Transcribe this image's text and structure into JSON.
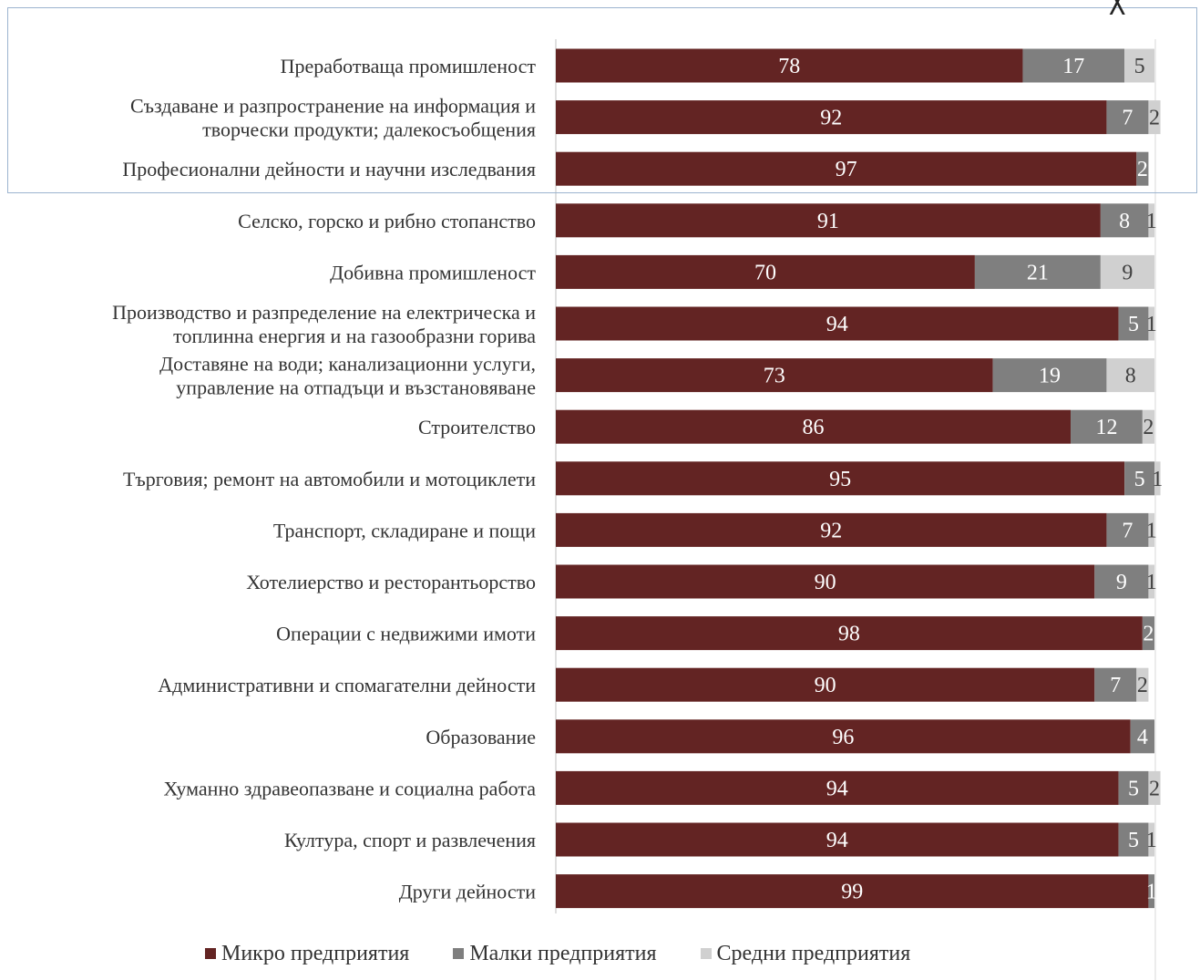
{
  "chart_data": {
    "type": "bar",
    "orientation": "horizontal",
    "stacked": true,
    "categories": [
      "Преработваща промишленост",
      "Създаване и разпространение на информация и творчески продукти; далекосъобщения",
      "Професионални дейности и научни изследвания",
      "Селско, горско и рибно стопанство",
      "Добивна промишленост",
      "Производство и разпределение на електрическа и топлинна енергия и на газообразни горива",
      "Доставяне на води; канализационни услуги, управление на отпадъци и възстановяване",
      "Строителство",
      "Търговия; ремонт на автомобили и мотоциклети",
      "Транспорт, складиране и пощи",
      "Хотелиерство и ресторантьорство",
      "Операции с недвижими имоти",
      "Административни и спомагателни дейности",
      "Образование",
      "Хуманно здравеопазване и социална работа",
      "Култура, спорт и развлечения",
      "Други дейности"
    ],
    "category_lines": [
      [
        "Преработваща промишленост"
      ],
      [
        "Създаване и разпространение на информация и",
        "творчески продукти; далекосъобщения"
      ],
      [
        "Професионални дейности и научни изследвания"
      ],
      [
        "Селско, горско и рибно стопанство"
      ],
      [
        "Добивна промишленост"
      ],
      [
        "Производство и разпределение на електрическа и",
        "топлинна енергия и на газообразни горива"
      ],
      [
        "Доставяне на води; канализационни услуги,",
        "управление на отпадъци и възстановяване"
      ],
      [
        "Строителство"
      ],
      [
        "Търговия; ремонт на автомобили и мотоциклети"
      ],
      [
        "Транспорт, складиране и пощи"
      ],
      [
        "Хотелиерство и ресторантьорство"
      ],
      [
        "Операции с недвижими имоти"
      ],
      [
        "Административни и спомагателни дейности"
      ],
      [
        "Образование"
      ],
      [
        "Хуманно здравеопазване и социална работа"
      ],
      [
        "Култура, спорт и развлечения"
      ],
      [
        "Други дейности"
      ]
    ],
    "series": [
      {
        "name": "Микро предприятия",
        "color": "#632423",
        "label_color": "#ffffff",
        "values": [
          78,
          92,
          97,
          91,
          70,
          94,
          73,
          86,
          95,
          92,
          90,
          98,
          90,
          96,
          94,
          94,
          99
        ]
      },
      {
        "name": "Малки предприятия",
        "color": "#7f7f7f",
        "label_color": "#ffffff",
        "values": [
          17,
          7,
          2,
          8,
          21,
          5,
          19,
          12,
          5,
          7,
          9,
          2,
          7,
          4,
          5,
          5,
          1
        ]
      },
      {
        "name": "Средни предприятия",
        "color": "#d0d0d0",
        "label_color": "#404040",
        "values": [
          5,
          2,
          null,
          1,
          9,
          1,
          8,
          2,
          1,
          1,
          1,
          null,
          2,
          null,
          2,
          1,
          null
        ]
      }
    ],
    "xlim": [
      0,
      100
    ],
    "grid": false,
    "legend_position": "bottom"
  },
  "ui": {
    "close_icon": "close-icon",
    "close_glyph": "╳"
  }
}
